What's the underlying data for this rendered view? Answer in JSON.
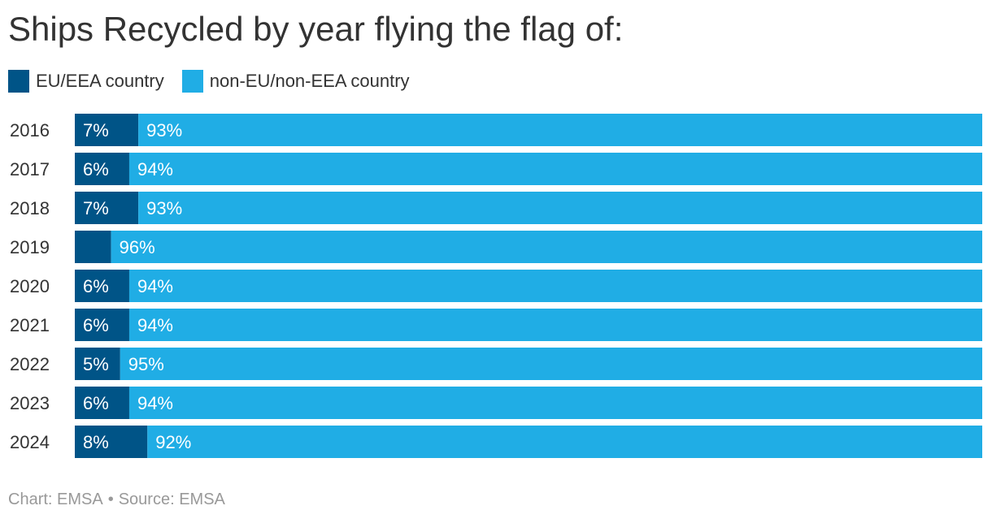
{
  "chart_data": {
    "type": "bar",
    "orientation": "horizontal",
    "stacked": true,
    "title": "Ships Recycled by year flying the flag of:",
    "categories": [
      "2016",
      "2017",
      "2018",
      "2019",
      "2020",
      "2021",
      "2022",
      "2023",
      "2024"
    ],
    "series": [
      {
        "name": "EU/EEA country",
        "color": "#005487",
        "values": [
          7,
          6,
          7,
          4,
          6,
          6,
          5,
          6,
          8
        ],
        "labels": [
          "7%",
          "6%",
          "7%",
          "",
          "6%",
          "6%",
          "5%",
          "6%",
          "8%"
        ]
      },
      {
        "name": "non-EU/non-EEA country",
        "color": "#20ade5",
        "values": [
          93,
          94,
          93,
          96,
          94,
          94,
          95,
          94,
          92
        ],
        "labels": [
          "93%",
          "94%",
          "93%",
          "96%",
          "94%",
          "94%",
          "95%",
          "94%",
          "92%"
        ]
      }
    ],
    "xlim": [
      0,
      100
    ],
    "legend_position": "top-left",
    "grid": false
  },
  "footer": {
    "chart_credit": "Chart: EMSA",
    "separator": "•",
    "source": "Source: EMSA"
  }
}
